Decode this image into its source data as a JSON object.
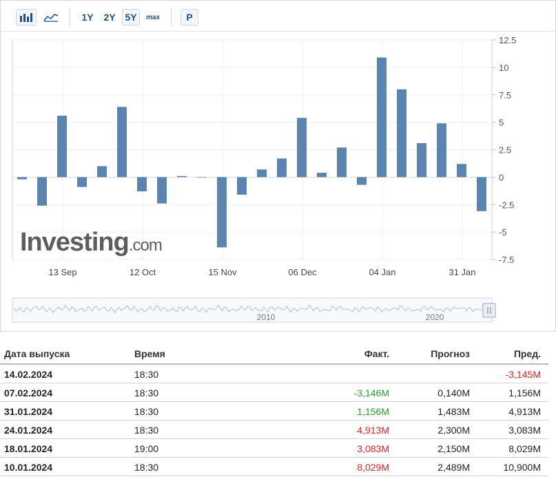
{
  "toolbar": {
    "ranges": [
      "1Y",
      "2Y",
      "5Y",
      "max"
    ],
    "selected": "5Y",
    "p_label": "P"
  },
  "chart_data": {
    "type": "bar",
    "x_ticks": [
      "13 Sep",
      "12 Oct",
      "15 Nov",
      "06 Dec",
      "04 Jan",
      "31 Jan"
    ],
    "y_ticks": [
      "12.5",
      "10",
      "7.5",
      "5",
      "2.5",
      "0",
      "-2.5",
      "-5",
      "-7.5"
    ],
    "ylim": [
      -7.5,
      12.5
    ],
    "values": [
      -0.2,
      -2.6,
      5.6,
      -0.9,
      1.0,
      6.4,
      -1.3,
      -2.4,
      0.1,
      0.0,
      -6.4,
      -1.6,
      0.7,
      1.7,
      5.4,
      0.4,
      2.7,
      -0.7,
      10.9,
      8.0,
      3.1,
      4.9,
      1.2,
      -3.1
    ],
    "bar_color": "#5b84b1",
    "grid": true,
    "watermark": "Investing.com",
    "navigator_labels": [
      "2010",
      "2020"
    ]
  },
  "table": {
    "headers": {
      "date": "Дата выпуска",
      "time": "Время",
      "actual": "Факт.",
      "forecast": "Прогноз",
      "previous": "Пред."
    },
    "rows": [
      {
        "date": "14.02.2024",
        "time": "18:30",
        "actual": "",
        "actual_color": "",
        "forecast": "",
        "previous": "-3,145M",
        "previous_color": "red"
      },
      {
        "date": "07.02.2024",
        "time": "18:30",
        "actual": "-3,146M",
        "actual_color": "green",
        "forecast": "0,140M",
        "previous": "1,156M",
        "previous_color": ""
      },
      {
        "date": "31.01.2024",
        "time": "18:30",
        "actual": "1,156M",
        "actual_color": "green",
        "forecast": "1,483M",
        "previous": "4,913M",
        "previous_color": ""
      },
      {
        "date": "24.01.2024",
        "time": "18:30",
        "actual": "4,913M",
        "actual_color": "red",
        "forecast": "2,300M",
        "previous": "3,083M",
        "previous_color": ""
      },
      {
        "date": "18.01.2024",
        "time": "19:00",
        "actual": "3,083M",
        "actual_color": "red",
        "forecast": "2,150M",
        "previous": "8,029M",
        "previous_color": ""
      },
      {
        "date": "10.01.2024",
        "time": "18:30",
        "actual": "8,029M",
        "actual_color": "red",
        "forecast": "2,489M",
        "previous": "10,900M",
        "previous_color": ""
      }
    ]
  }
}
